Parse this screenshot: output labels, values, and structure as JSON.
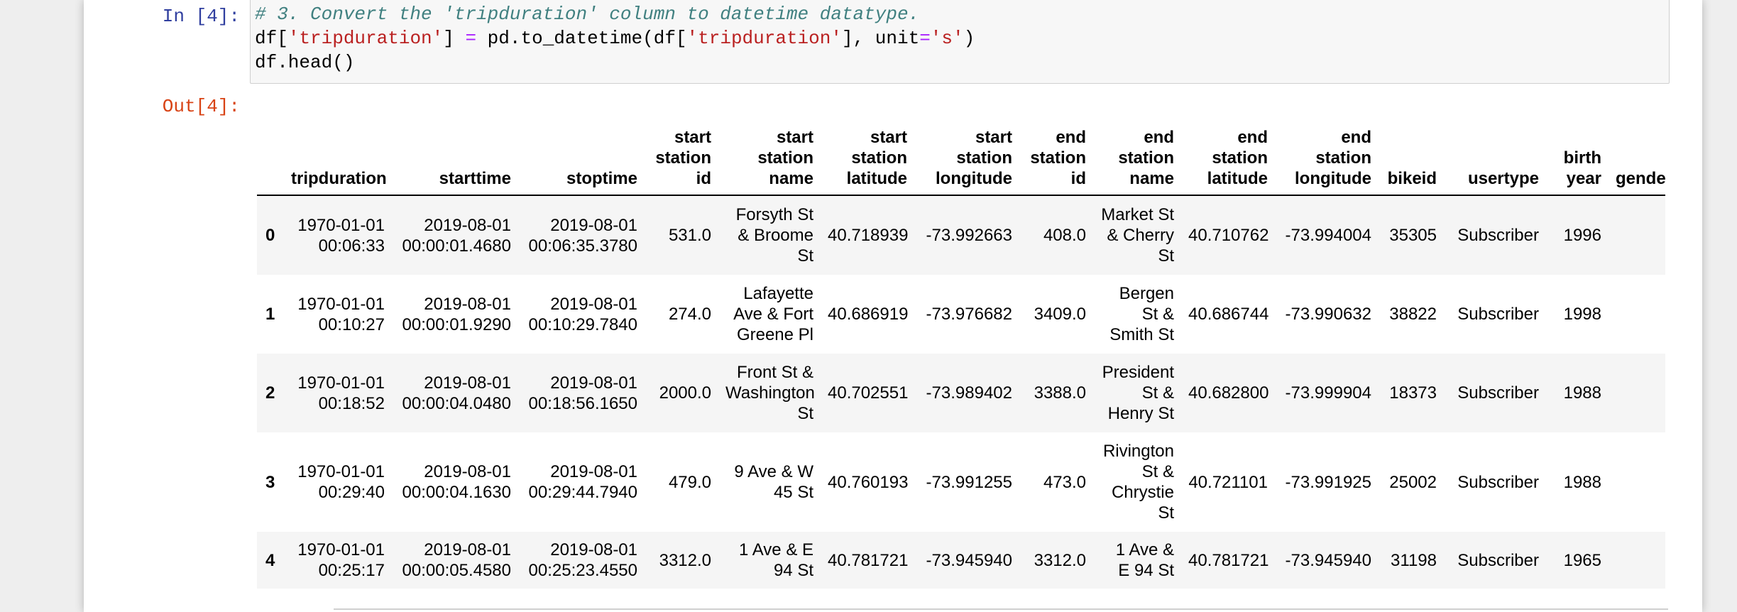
{
  "cell": {
    "in_prompt": "In [4]:",
    "out_prompt": "Out[4]:",
    "code": {
      "line1_comment": "# 3. Convert the 'tripduration' column to datetime datatype.",
      "line2": {
        "a": "df[",
        "b": "'tripduration'",
        "c": "] ",
        "d": "=",
        "e": " pd.to_datetime(df[",
        "f": "'tripduration'",
        "g": "], unit",
        "h": "=",
        "i": "'s'",
        "j": ")"
      },
      "line3": "df.head()"
    }
  },
  "table": {
    "headers": [
      "",
      "tripduration",
      "starttime",
      "stoptime",
      "start station id",
      "start station name",
      "start station latitude",
      "start station longitude",
      "end station id",
      "end station name",
      "end station latitude",
      "end station longitude",
      "bikeid",
      "usertype",
      "birth year",
      "gender"
    ],
    "rows": [
      [
        "0",
        "1970-01-01 00:06:33",
        "2019-08-01 00:00:01.4680",
        "2019-08-01 00:06:35.3780",
        "531.0",
        "Forsyth St & Broome St",
        "40.718939",
        "-73.992663",
        "408.0",
        "Market St & Cherry St",
        "40.710762",
        "-73.994004",
        "35305",
        "Subscriber",
        "1996",
        ""
      ],
      [
        "1",
        "1970-01-01 00:10:27",
        "2019-08-01 00:00:01.9290",
        "2019-08-01 00:10:29.7840",
        "274.0",
        "Lafayette Ave & Fort Greene Pl",
        "40.686919",
        "-73.976682",
        "3409.0",
        "Bergen St & Smith St",
        "40.686744",
        "-73.990632",
        "38822",
        "Subscriber",
        "1998",
        ""
      ],
      [
        "2",
        "1970-01-01 00:18:52",
        "2019-08-01 00:00:04.0480",
        "2019-08-01 00:18:56.1650",
        "2000.0",
        "Front St & Washington St",
        "40.702551",
        "-73.989402",
        "3388.0",
        "President St & Henry St",
        "40.682800",
        "-73.999904",
        "18373",
        "Subscriber",
        "1988",
        ""
      ],
      [
        "3",
        "1970-01-01 00:29:40",
        "2019-08-01 00:00:04.1630",
        "2019-08-01 00:29:44.7940",
        "479.0",
        "9 Ave & W 45 St",
        "40.760193",
        "-73.991255",
        "473.0",
        "Rivington St & Chrystie St",
        "40.721101",
        "-73.991925",
        "25002",
        "Subscriber",
        "1988",
        ""
      ],
      [
        "4",
        "1970-01-01 00:25:17",
        "2019-08-01 00:00:05.4580",
        "2019-08-01 00:25:23.4550",
        "3312.0",
        "1 Ave & E 94 St",
        "40.781721",
        "-73.945940",
        "3312.0",
        "1 Ave & E 94 St",
        "40.781721",
        "-73.945940",
        "31198",
        "Subscriber",
        "1965",
        ""
      ]
    ]
  }
}
